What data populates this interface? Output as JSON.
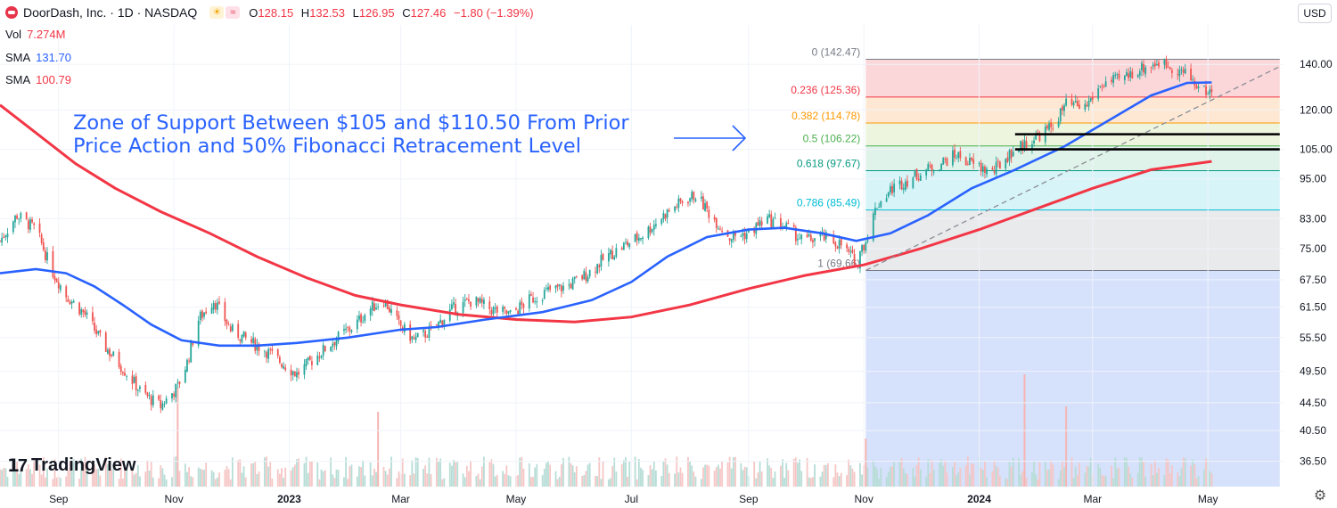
{
  "header": {
    "symbol_title": "DoorDash, Inc. · 1D · NASDAQ",
    "open_label": "O",
    "open": "128.15",
    "high_label": "H",
    "high": "132.53",
    "low_label": "L",
    "low": "126.95",
    "close_label": "C",
    "close": "127.46",
    "change": "−1.80 (−1.39%)",
    "logo_icon": "doordash-logo-icon",
    "status_icons": [
      "sun-icon",
      "wave-icon"
    ]
  },
  "indicators": {
    "vol_label": "Vol",
    "vol_value": "7.274M",
    "vol_color": "#f23645",
    "sma1_label": "SMA",
    "sma1_value": "131.70",
    "sma1_color": "#2962ff",
    "sma2_label": "SMA",
    "sma2_value": "100.79",
    "sma2_color": "#f23645"
  },
  "currency": "USD",
  "annotation": "Zone of Support Between $105 and $110.50 From Prior\nPrice Action and 50% Fibonacci Retracement Level",
  "watermark": "TradingView",
  "colors": {
    "up": "#26a69a",
    "down": "#ef5350",
    "sma50": "#2962ff",
    "sma200": "#f23645",
    "annotation": "#2962ff"
  },
  "chart_data": {
    "type": "candlestick",
    "y_scale": "log",
    "ylim": [
      33.5,
      160
    ],
    "x_range": [
      "2022-08-01",
      "2024-06-10"
    ],
    "y_ticks": [
      "140.00",
      "120.00",
      "105.00",
      "95.00",
      "83.00",
      "75.00",
      "67.50",
      "61.50",
      "55.50",
      "49.50",
      "44.50",
      "40.50",
      "36.50"
    ],
    "x_ticks": [
      {
        "label": "Sep",
        "date": "2022-09-01",
        "bold": false
      },
      {
        "label": "Nov",
        "date": "2022-11-01",
        "bold": false
      },
      {
        "label": "2023",
        "date": "2023-01-01",
        "bold": true
      },
      {
        "label": "Mar",
        "date": "2023-03-01",
        "bold": false
      },
      {
        "label": "May",
        "date": "2023-05-01",
        "bold": false
      },
      {
        "label": "Jul",
        "date": "2023-07-01",
        "bold": false
      },
      {
        "label": "Sep",
        "date": "2023-09-01",
        "bold": false
      },
      {
        "label": "Nov",
        "date": "2023-11-01",
        "bold": false
      },
      {
        "label": "2024",
        "date": "2024-01-01",
        "bold": true
      },
      {
        "label": "Mar",
        "date": "2024-03-01",
        "bold": false
      },
      {
        "label": "May",
        "date": "2024-05-01",
        "bold": false
      }
    ],
    "price_path": [
      [
        "2022-08-01",
        77
      ],
      [
        "2022-08-10",
        84
      ],
      [
        "2022-08-20",
        80
      ],
      [
        "2022-08-28",
        70
      ],
      [
        "2022-09-05",
        64
      ],
      [
        "2022-09-15",
        60
      ],
      [
        "2022-09-25",
        54
      ],
      [
        "2022-10-05",
        50
      ],
      [
        "2022-10-15",
        46
      ],
      [
        "2022-10-25",
        44
      ],
      [
        "2022-11-03",
        47
      ],
      [
        "2022-11-08",
        51
      ],
      [
        "2022-11-14",
        59
      ],
      [
        "2022-11-22",
        63
      ],
      [
        "2022-12-01",
        57
      ],
      [
        "2022-12-10",
        55
      ],
      [
        "2022-12-20",
        53
      ],
      [
        "2022-12-28",
        51
      ],
      [
        "2023-01-05",
        49
      ],
      [
        "2023-01-15",
        52
      ],
      [
        "2023-01-25",
        55
      ],
      [
        "2023-02-05",
        58
      ],
      [
        "2023-02-12",
        61
      ],
      [
        "2023-02-20",
        63
      ],
      [
        "2023-02-28",
        58
      ],
      [
        "2023-03-08",
        55
      ],
      [
        "2023-03-18",
        57
      ],
      [
        "2023-03-28",
        61
      ],
      [
        "2023-04-08",
        63
      ],
      [
        "2023-04-18",
        61
      ],
      [
        "2023-04-28",
        60
      ],
      [
        "2023-05-08",
        63
      ],
      [
        "2023-05-18",
        65
      ],
      [
        "2023-05-28",
        66
      ],
      [
        "2023-06-08",
        69
      ],
      [
        "2023-06-18",
        73
      ],
      [
        "2023-06-28",
        76
      ],
      [
        "2023-07-08",
        79
      ],
      [
        "2023-07-18",
        84
      ],
      [
        "2023-07-28",
        88
      ],
      [
        "2023-08-04",
        90
      ],
      [
        "2023-08-12",
        84
      ],
      [
        "2023-08-22",
        78
      ],
      [
        "2023-09-01",
        79
      ],
      [
        "2023-09-10",
        83
      ],
      [
        "2023-09-20",
        81
      ],
      [
        "2023-09-30",
        77
      ],
      [
        "2023-10-10",
        78
      ],
      [
        "2023-10-20",
        76
      ],
      [
        "2023-10-27",
        72
      ],
      [
        "2023-11-02",
        77
      ],
      [
        "2023-11-08",
        87
      ],
      [
        "2023-11-16",
        92
      ],
      [
        "2023-11-28",
        96
      ],
      [
        "2023-12-08",
        99
      ],
      [
        "2023-12-20",
        103
      ],
      [
        "2023-12-28",
        100
      ],
      [
        "2024-01-08",
        97
      ],
      [
        "2024-01-18",
        104
      ],
      [
        "2024-01-30",
        109
      ],
      [
        "2024-02-08",
        113
      ],
      [
        "2024-02-16",
        122
      ],
      [
        "2024-02-26",
        121
      ],
      [
        "2024-03-06",
        131
      ],
      [
        "2024-03-16",
        133
      ],
      [
        "2024-03-26",
        138
      ],
      [
        "2024-04-05",
        141
      ],
      [
        "2024-04-12",
        139
      ],
      [
        "2024-04-20",
        135
      ],
      [
        "2024-04-28",
        128
      ],
      [
        "2024-05-03",
        127.46
      ]
    ],
    "volume_spikes": [
      [
        "2022-11-03",
        18.5
      ],
      [
        "2023-02-17",
        14
      ],
      [
        "2023-11-02",
        9
      ],
      [
        "2024-01-25",
        21
      ],
      [
        "2024-02-16",
        15
      ]
    ],
    "sma50": [
      [
        "2022-08-01",
        69
      ],
      [
        "2022-08-20",
        70
      ],
      [
        "2022-09-05",
        69
      ],
      [
        "2022-09-20",
        66
      ],
      [
        "2022-10-05",
        62
      ],
      [
        "2022-10-20",
        58
      ],
      [
        "2022-11-05",
        55
      ],
      [
        "2022-11-25",
        54
      ],
      [
        "2022-12-15",
        54
      ],
      [
        "2023-01-05",
        54.5
      ],
      [
        "2023-02-01",
        55.5
      ],
      [
        "2023-03-01",
        57
      ],
      [
        "2023-03-20",
        57.5
      ],
      [
        "2023-04-15",
        59
      ],
      [
        "2023-05-15",
        60.5
      ],
      [
        "2023-06-10",
        63
      ],
      [
        "2023-07-01",
        67
      ],
      [
        "2023-07-20",
        73
      ],
      [
        "2023-08-10",
        78
      ],
      [
        "2023-09-01",
        80
      ],
      [
        "2023-09-20",
        80.5
      ],
      [
        "2023-10-10",
        79
      ],
      [
        "2023-10-28",
        77
      ],
      [
        "2023-11-15",
        79
      ],
      [
        "2023-12-05",
        84
      ],
      [
        "2023-12-28",
        92
      ],
      [
        "2024-01-20",
        98
      ],
      [
        "2024-02-15",
        106
      ],
      [
        "2024-03-10",
        116
      ],
      [
        "2024-04-01",
        126
      ],
      [
        "2024-04-20",
        131.5
      ],
      [
        "2024-05-03",
        131.7
      ]
    ],
    "sma200": [
      [
        "2022-08-01",
        122
      ],
      [
        "2022-08-20",
        111
      ],
      [
        "2022-09-10",
        100
      ],
      [
        "2022-10-01",
        92
      ],
      [
        "2022-10-25",
        85
      ],
      [
        "2022-11-20",
        79
      ],
      [
        "2022-12-15",
        73
      ],
      [
        "2023-01-10",
        68
      ],
      [
        "2023-02-05",
        64
      ],
      [
        "2023-03-01",
        62
      ],
      [
        "2023-04-01",
        60
      ],
      [
        "2023-05-01",
        59
      ],
      [
        "2023-06-01",
        58.5
      ],
      [
        "2023-07-01",
        59.5
      ],
      [
        "2023-08-01",
        62
      ],
      [
        "2023-09-01",
        65.5
      ],
      [
        "2023-10-01",
        68.5
      ],
      [
        "2023-11-01",
        71
      ],
      [
        "2023-12-01",
        75
      ],
      [
        "2024-01-01",
        80
      ],
      [
        "2024-02-01",
        86
      ],
      [
        "2024-03-01",
        92
      ],
      [
        "2024-04-01",
        98
      ],
      [
        "2024-05-03",
        100.79
      ]
    ],
    "fibonacci": {
      "start_date": "2023-11-02",
      "end_date": "2024-06-08",
      "levels": [
        {
          "ratio": "0",
          "price": 142.47,
          "label": "0 (142.47)",
          "color": "#787b86",
          "fill": "#f9c9cd"
        },
        {
          "ratio": "0.236",
          "price": 125.36,
          "label": "0.236 (125.36)",
          "color": "#f23645",
          "fill": "#fde0c4"
        },
        {
          "ratio": "0.382",
          "price": 114.78,
          "label": "0.382 (114.78)",
          "color": "#ff9800",
          "fill": "#e7f2d4"
        },
        {
          "ratio": "0.5",
          "price": 106.22,
          "label": "0.5 (106.22)",
          "color": "#4caf50",
          "fill": "#d6efe3"
        },
        {
          "ratio": "0.618",
          "price": 97.67,
          "label": "0.618 (97.67)",
          "color": "#089981",
          "fill": "#c9f0f6"
        },
        {
          "ratio": "0.786",
          "price": 85.49,
          "label": "0.786 (85.49)",
          "color": "#00bcd4",
          "fill": "#e2e3e6"
        },
        {
          "ratio": "1",
          "price": 69.66,
          "label": "1 (69.66)",
          "color": "#787b86",
          "fill": "#c8d7fb"
        }
      ]
    },
    "trendline": {
      "from": [
        "2023-11-02",
        69.66
      ],
      "to": [
        "2024-06-08",
        139
      ]
    },
    "support_lines": [
      {
        "price": 110.5,
        "from": "2024-01-20",
        "to": "2024-06-08"
      },
      {
        "price": 105,
        "from": "2024-01-20",
        "to": "2024-06-08"
      }
    ]
  }
}
